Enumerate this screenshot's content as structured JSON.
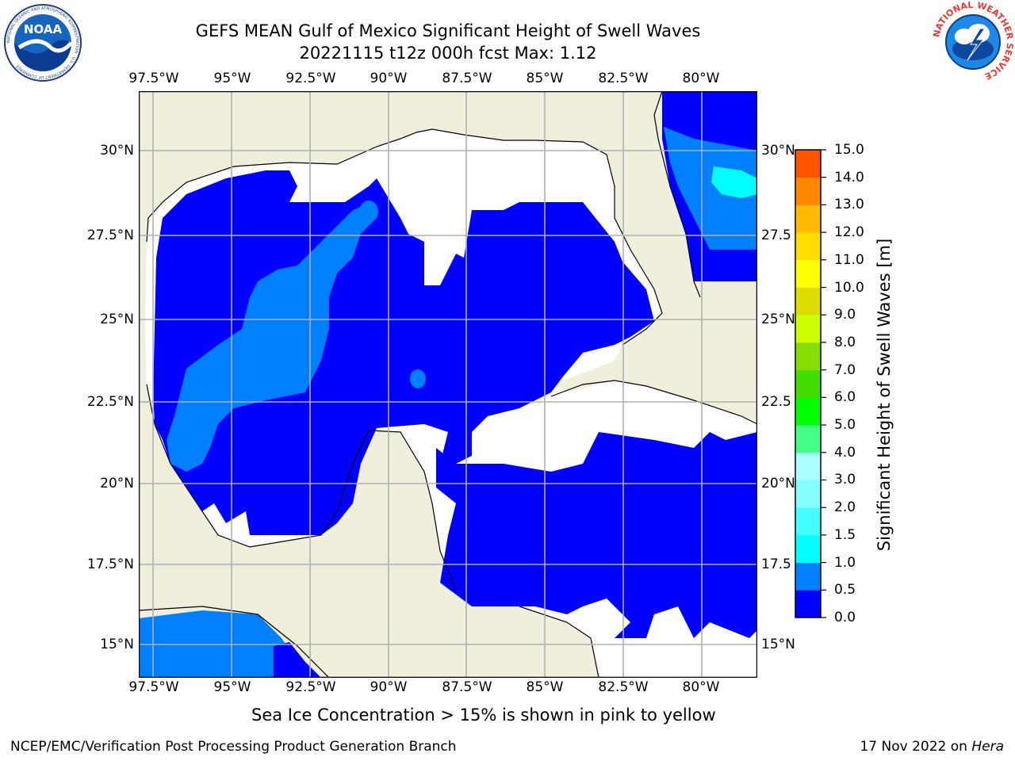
{
  "title": {
    "line1": "GEFS MEAN Gulf of Mexico Significant Height of Swell Waves",
    "line2": "20221115 t12z 000h fcst   Max: 1.12"
  },
  "logos": {
    "noaa_text": "NOAA",
    "noaa_ring": "NATIONAL OCEANIC AND ATMOSPHERIC ADMINISTRATION · U.S. DEPARTMENT OF COMMERCE",
    "nws_ring": "NATIONAL WEATHER SERVICE"
  },
  "map": {
    "lon_labels": [
      "97.5°W",
      "95°W",
      "92.5°W",
      "90°W",
      "87.5°W",
      "85°W",
      "82.5°W",
      "80°W"
    ],
    "lat_labels": [
      "30°N",
      "27.5°N",
      "25°N",
      "22.5°N",
      "20°N",
      "17.5°N",
      "15°N"
    ],
    "lat_labels_right": [
      "30°N",
      "27.5",
      "25°N",
      "22.5",
      "20°N",
      "17.5",
      "15°N"
    ],
    "colors": {
      "land": "#efefdc",
      "ocean_low": "#0000ff",
      "ocean_mid": "#0080ff",
      "ocean_high": "#00ffff",
      "grid": "#b0b0b0"
    }
  },
  "colorbar": {
    "label": "Significant Height of Swell Waves [m]",
    "ticks": [
      "15.0",
      "14.0",
      "13.0",
      "12.0",
      "11.0",
      "10.0",
      "9.0",
      "8.0",
      "7.0",
      "6.0",
      "5.0",
      "4.0",
      "3.0",
      "2.0",
      "1.5",
      "1.0",
      "0.5",
      "0.0"
    ],
    "colors": [
      "#0000ff",
      "#0080ff",
      "#00ffff",
      "#44ffff",
      "#88ffff",
      "#aaffff",
      "#44ff88",
      "#00ff00",
      "#44dd00",
      "#88dd00",
      "#ccff00",
      "#dddd00",
      "#ffff00",
      "#ffdd00",
      "#ffbb00",
      "#ff8800",
      "#ff5500",
      "#ff2200",
      "#ff0000"
    ]
  },
  "note": "Sea Ice Concentration > 15% is shown in pink to yellow",
  "footer": {
    "left": "NCEP/EMC/Verification Post Processing Product Generation Branch",
    "right_date": "17 Nov 2022 on ",
    "right_host": "Hera"
  }
}
